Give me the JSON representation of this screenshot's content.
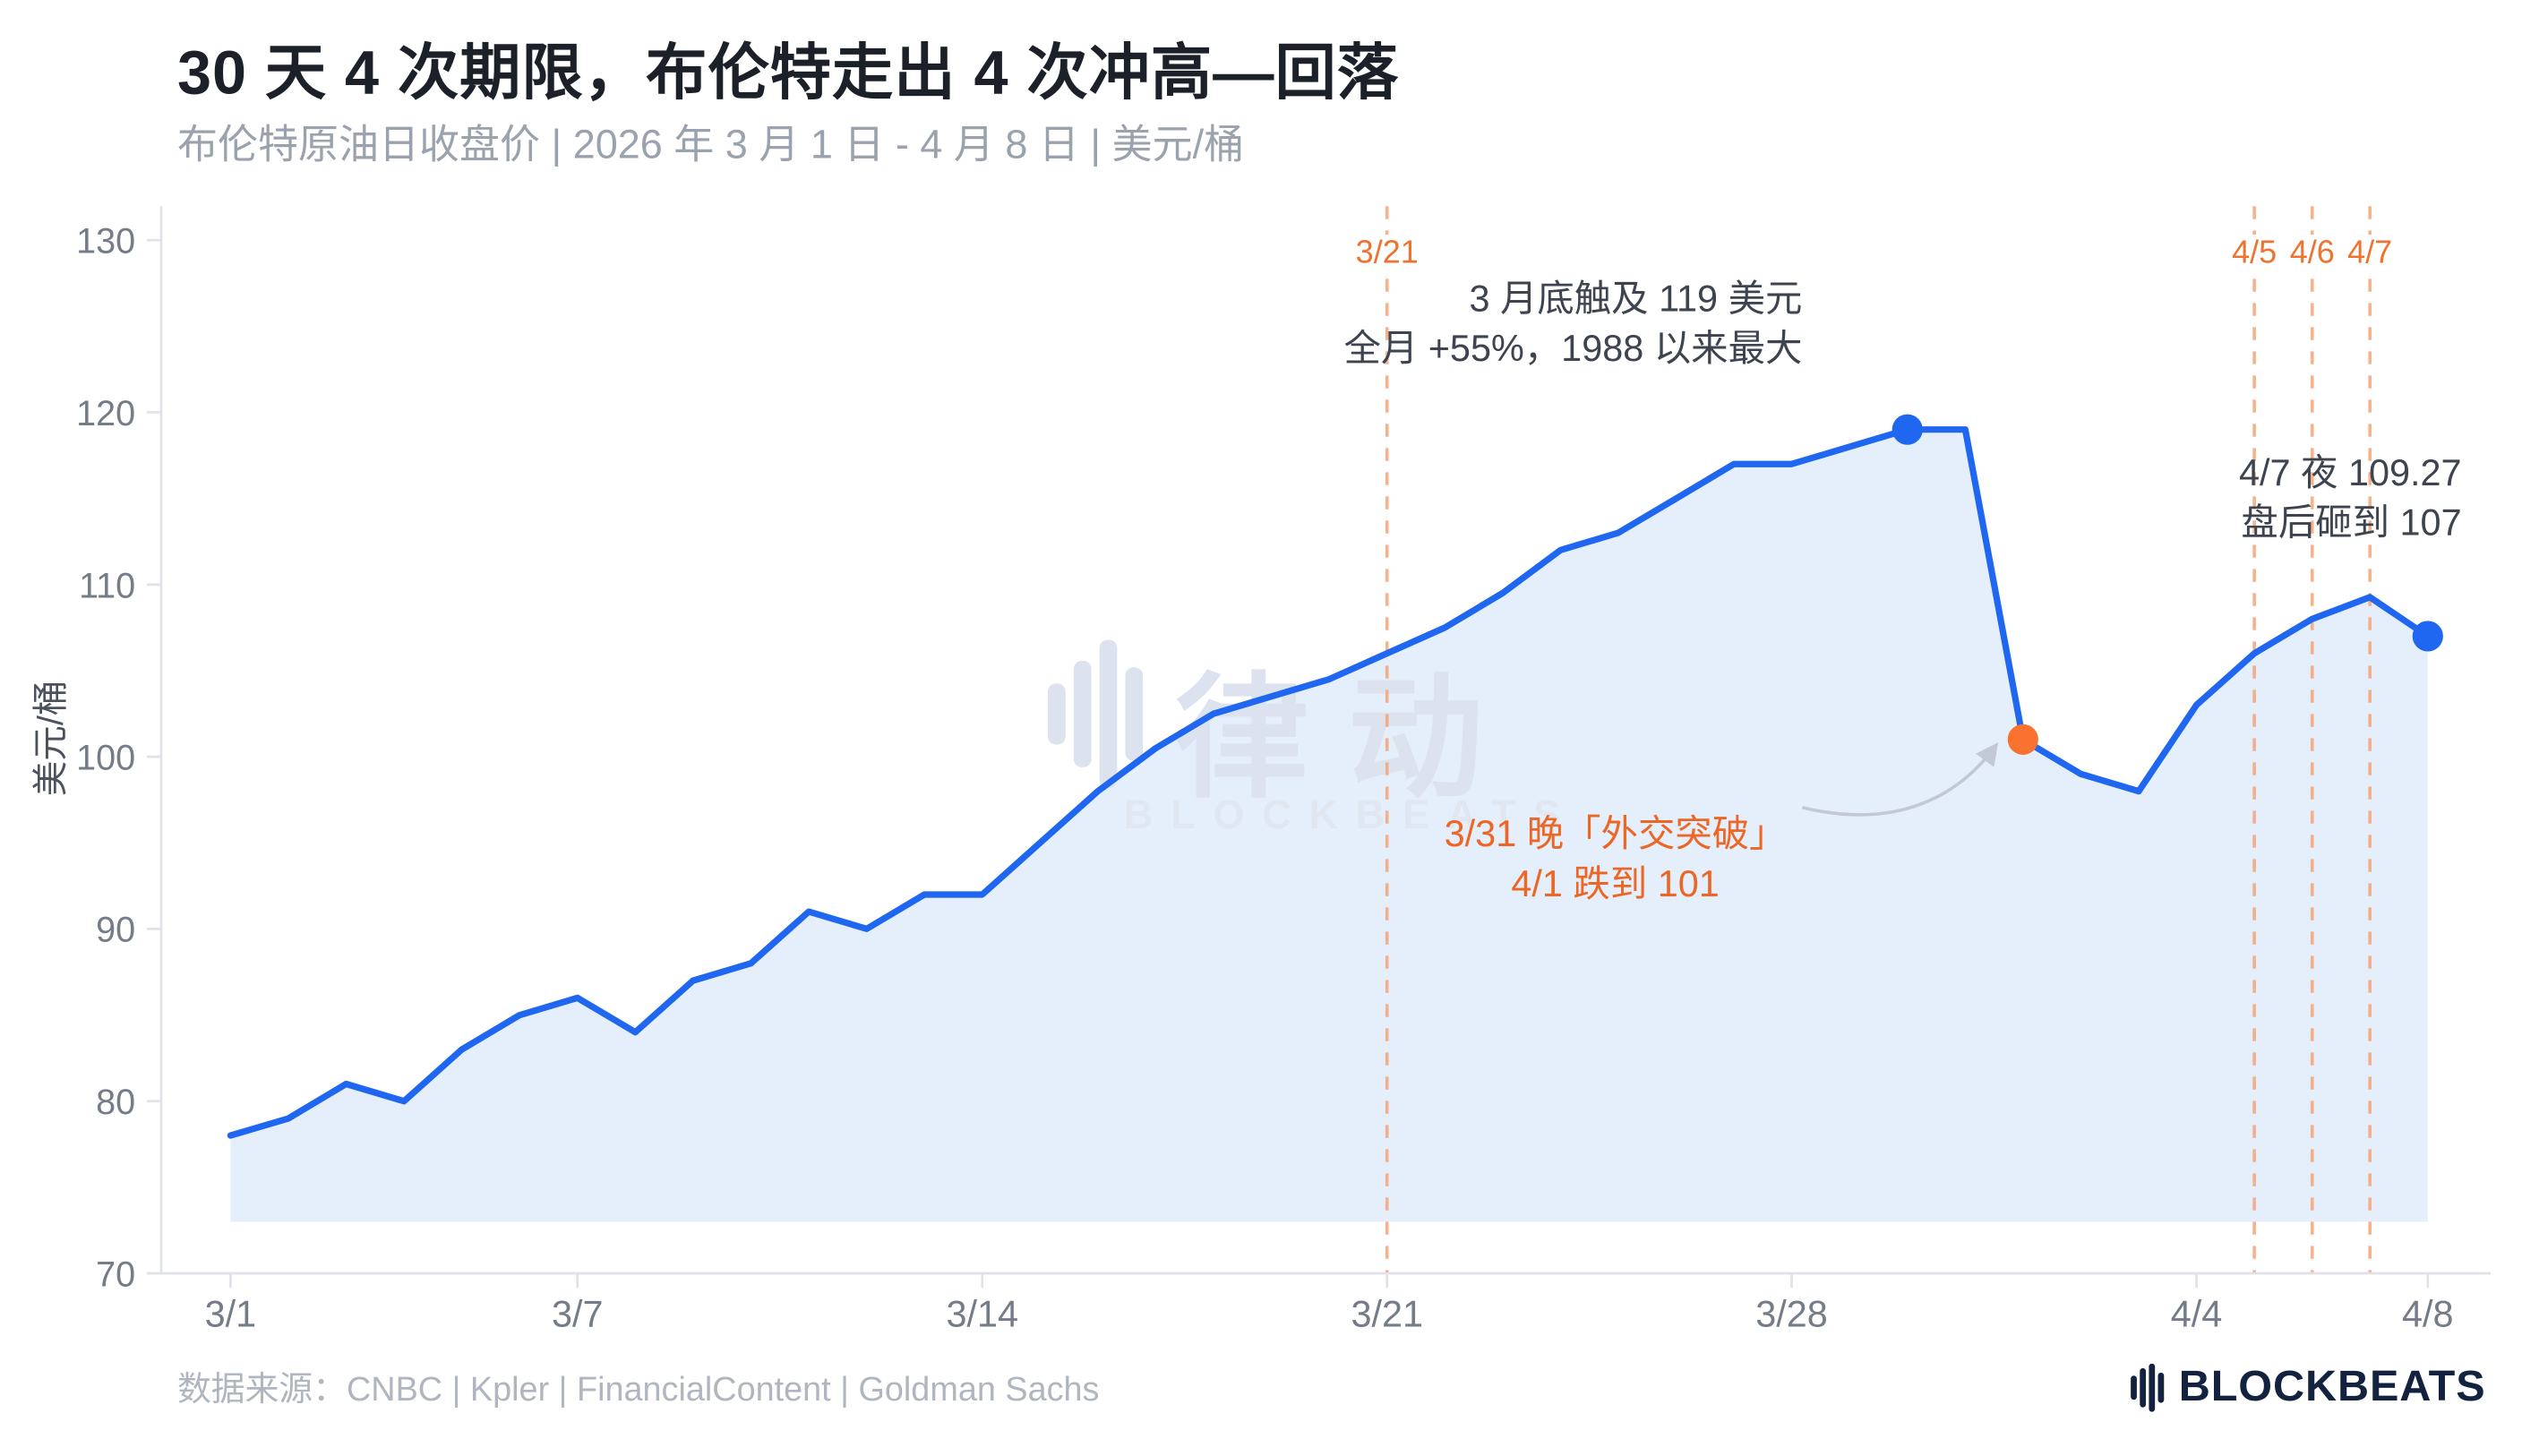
{
  "header": {
    "title": "30 天 4 次期限，布伦特走出 4 次冲高—回落",
    "subtitle": "布伦特原油日收盘价 | 2026 年 3 月 1 日 - 4 月 8 日 | 美元/桶"
  },
  "chart_data": {
    "type": "area",
    "title": "30 天 4 次期限，布伦特走出 4 次冲高—回落",
    "subtitle": "布伦特原油日收盘价 | 2026 年 3 月 1 日 - 4 月 8 日 | 美元/桶",
    "xlabel": "",
    "ylabel": "美元/桶",
    "ylim": [
      70,
      130
    ],
    "y_ticks": [
      70,
      80,
      90,
      100,
      110,
      120,
      130
    ],
    "x_tick_labels": [
      "3/1",
      "3/7",
      "3/14",
      "3/21",
      "3/28",
      "4/4",
      "4/8"
    ],
    "x_tick_indices": [
      0,
      6,
      13,
      20,
      27,
      34,
      38
    ],
    "grid": false,
    "area_baseline": 73,
    "series_name": "布伦特原油日收盘价",
    "dates": [
      "3/1",
      "3/2",
      "3/3",
      "3/4",
      "3/5",
      "3/6",
      "3/7",
      "3/8",
      "3/9",
      "3/10",
      "3/11",
      "3/12",
      "3/13",
      "3/14",
      "3/15",
      "3/16",
      "3/17",
      "3/18",
      "3/19",
      "3/20",
      "3/21",
      "3/22",
      "3/23",
      "3/24",
      "3/25",
      "3/26",
      "3/27",
      "3/28",
      "3/29",
      "3/30",
      "3/31",
      "4/1",
      "4/2",
      "4/3",
      "4/4",
      "4/5",
      "4/6",
      "4/7",
      "4/8"
    ],
    "values": [
      78,
      79,
      81,
      80,
      83,
      85,
      86,
      84,
      87,
      88,
      91,
      90,
      92,
      92,
      95,
      98,
      100.5,
      102.5,
      103.5,
      104.5,
      106,
      107.5,
      109.5,
      112,
      113,
      115,
      117,
      117,
      118,
      119,
      119,
      101,
      99,
      98,
      103,
      106,
      108,
      109.27,
      107
    ],
    "markers": [
      {
        "date": "3/30",
        "index": 29,
        "value": 119,
        "color": "blue"
      },
      {
        "date": "4/1",
        "index": 31,
        "value": 101,
        "color": "orange"
      },
      {
        "date": "4/8",
        "index": 38,
        "value": 107,
        "color": "blue"
      }
    ],
    "vlines": [
      {
        "date": "3/21",
        "index": 20,
        "label": "3/21"
      },
      {
        "date": "4/5",
        "index": 35,
        "label": "4/5"
      },
      {
        "date": "4/6",
        "index": 36,
        "label": "4/6"
      },
      {
        "date": "4/7",
        "index": 37,
        "label": "4/7"
      }
    ],
    "colors": {
      "line": "#1f66f0",
      "area": "#e5eefb",
      "marker_blue": "#1f66f0",
      "marker_orange": "#f9722f",
      "vline": "#f6a477",
      "vline_label": "#ef7330",
      "annotation_orange": "#ec6626"
    }
  },
  "annotations": {
    "peak": {
      "line1": "3 月底触及 119 美元",
      "line2": "全月 +55%，1988 以来最大"
    },
    "late": {
      "line1": "4/7 夜 109.27",
      "line2": "盘后砸到 107"
    },
    "drop": {
      "line1": "3/31 晚「外交突破」",
      "line2": "4/1 跌到 101"
    }
  },
  "watermark": {
    "cn": "律动",
    "en": "BLOCKBEATS"
  },
  "footer": {
    "source": "数据来源：CNBC | Kpler | FinancialContent | Goldman Sachs",
    "logo_text": "BLOCKBEATS"
  }
}
